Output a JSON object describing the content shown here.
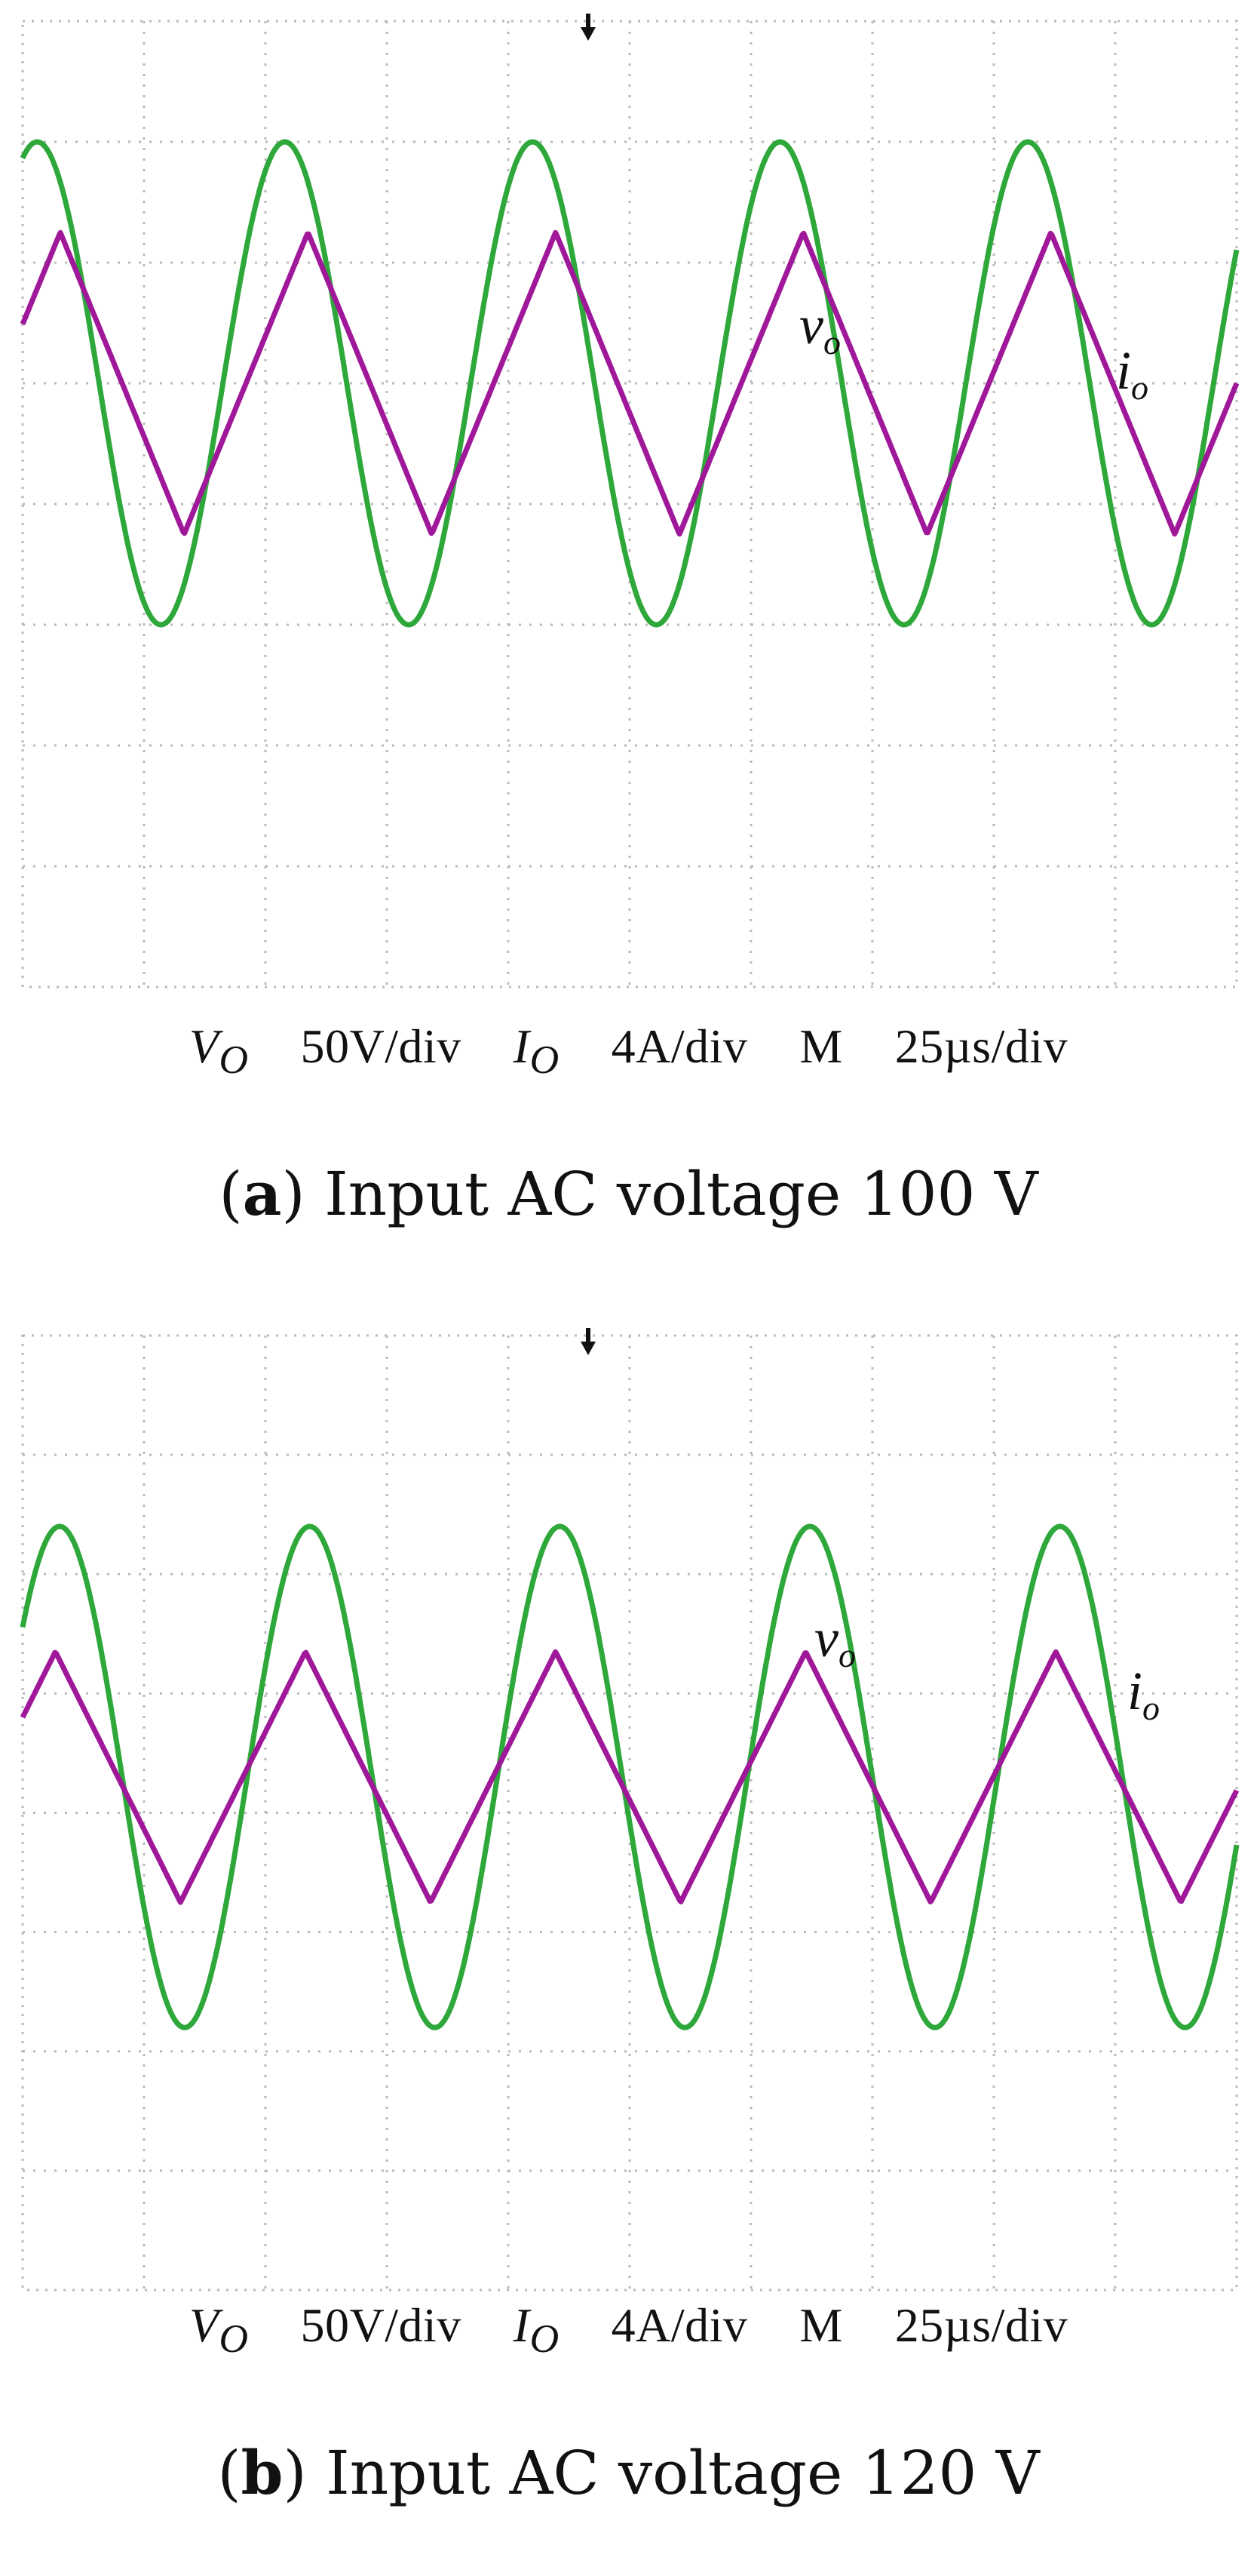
{
  "chart_data": [
    {
      "type": "line",
      "caption_letter": "a",
      "caption_text": "Input AC voltage 100 V",
      "scale_text": {
        "vo_label": "V",
        "vo_sub": "O",
        "vo_scale": "50V/div",
        "io_label": "I",
        "io_sub": "O",
        "io_scale": "4A/div",
        "time_label": "M",
        "time_scale": "25µs/div"
      },
      "trace_labels": [
        "v",
        "i"
      ],
      "trace_subs": [
        "o",
        "o"
      ],
      "grid": true,
      "divisions": {
        "x": 10,
        "y": 8
      },
      "series": [
        {
          "label_index": 0,
          "color": "#2ea83a",
          "amplitude_div": 2.0,
          "offset_div": 1.0,
          "period_div": 2.04,
          "phase_div": 1.65,
          "shape": "sine"
        },
        {
          "label_index": 1,
          "color": "#a0189a",
          "amplitude_div": 1.25,
          "offset_div": 1.0,
          "period_div": 2.04,
          "phase_div": 1.33,
          "shape": "triangle"
        }
      ]
    },
    {
      "type": "line",
      "caption_letter": "b",
      "caption_text": "Input AC voltage 120 V",
      "scale_text": {
        "vo_label": "V",
        "vo_sub": "O",
        "vo_scale": "50V/div",
        "io_label": "I",
        "io_sub": "O",
        "io_scale": "4A/div",
        "time_label": "M",
        "time_scale": "25µs/div"
      },
      "trace_labels": [
        "v",
        "i"
      ],
      "trace_subs": [
        "o",
        "o"
      ],
      "grid": true,
      "divisions": {
        "x": 10,
        "y": 8
      },
      "series": [
        {
          "label_index": 0,
          "color": "#2ea83a",
          "amplitude_div": 2.1,
          "offset_div": 0.3,
          "period_div": 2.06,
          "phase_div": 1.85,
          "shape": "sine"
        },
        {
          "label_index": 1,
          "color": "#a0189a",
          "amplitude_div": 1.05,
          "offset_div": 0.3,
          "period_div": 2.06,
          "phase_div": 1.3,
          "shape": "triangle"
        }
      ]
    }
  ],
  "colors": {
    "grid": "#b9b9b9",
    "voltage": "#2ea83a",
    "current": "#a0189a"
  }
}
